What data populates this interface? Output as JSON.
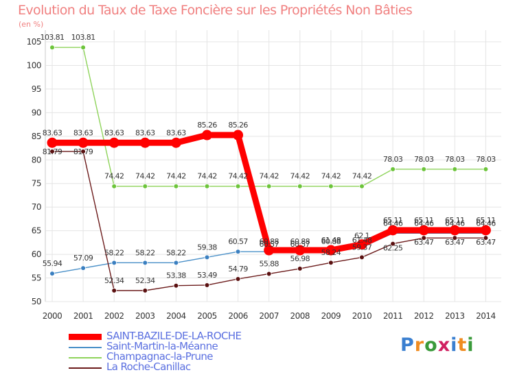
{
  "header": {
    "title": "Evolution du Taux de Taxe Foncière sur les Propriétés Non Bâties",
    "unit": "(en %)"
  },
  "logo": {
    "letters": [
      "P",
      "r",
      "o",
      "x",
      "i",
      "t",
      "i"
    ],
    "colors": [
      "#3a7fd0",
      "#f08c20",
      "#3a9a3a",
      "#d02060",
      "#3a7fd0",
      "#f08c20",
      "#3a9a3a"
    ]
  },
  "chart_data": {
    "type": "line",
    "title": "Evolution du Taux de Taxe Foncière sur les Propriétés Non Bâties",
    "ylabel": "(en %)",
    "xlabel": "",
    "x": [
      2000,
      2001,
      2002,
      2003,
      2004,
      2005,
      2006,
      2007,
      2008,
      2009,
      2010,
      2011,
      2012,
      2013,
      2014
    ],
    "ylim": [
      50,
      105
    ],
    "yticks": [
      50,
      55,
      60,
      65,
      70,
      75,
      80,
      85,
      90,
      95,
      100,
      105
    ],
    "grid": true,
    "legend_position": "bottom-left",
    "series": [
      {
        "name": "SAINT-BAZILE-DE-LA-ROCHE",
        "color": "#ff0000",
        "values": [
          83.63,
          83.63,
          83.63,
          83.63,
          83.63,
          85.26,
          85.26,
          60.88,
          60.88,
          60.88,
          62.1,
          65.11,
          65.11,
          65.11,
          65.11
        ],
        "labels": [
          "83.63",
          "83.63",
          "83.63",
          "83.63",
          "83.63",
          "85.26",
          "85.26",
          "60.88",
          "60.88",
          "60.88",
          "62.1",
          "65.11",
          "65.11",
          "65.11",
          "65.11"
        ]
      },
      {
        "name": "Saint-Martin-la-Méanne",
        "color": "#4a90c8",
        "values": [
          55.94,
          57.09,
          58.22,
          58.22,
          58.22,
          59.38,
          60.57,
          60.57,
          60.57,
          61.48,
          61.48,
          64.46,
          64.46,
          64.46,
          64.46
        ],
        "labels": [
          "55.94",
          "57.09",
          "58.22",
          "58.22",
          "58.22",
          "59.38",
          "60.57",
          "60.57",
          "60.57",
          "61.48",
          "61.48",
          "64.46",
          "64.46",
          "64.46",
          "64.46"
        ]
      },
      {
        "name": "Champagnac-la-Prune",
        "color": "#8ed35a",
        "values": [
          103.81,
          103.81,
          74.42,
          74.42,
          74.42,
          74.42,
          74.42,
          74.42,
          74.42,
          74.42,
          74.42,
          78.03,
          78.03,
          78.03,
          78.03
        ],
        "labels": [
          "103.81",
          "103.81",
          "74.42",
          "74.42",
          "74.42",
          "74.42",
          "74.42",
          "74.42",
          "74.42",
          "74.42",
          "74.42",
          "78.03",
          "78.03",
          "78.03",
          "78.03"
        ]
      },
      {
        "name": "La Roche-Canillac",
        "color": "#6b1a1a",
        "values": [
          81.79,
          81.79,
          52.34,
          52.34,
          53.38,
          53.49,
          54.79,
          55.88,
          56.98,
          58.24,
          59.37,
          62.25,
          63.47,
          63.47,
          63.47
        ],
        "labels": [
          "81.79",
          "81.79",
          "52.34",
          "52.34",
          "53.38",
          "53.49",
          "54.79",
          "55.88",
          "56.98",
          "58.24",
          "59.37",
          "62.25",
          "63.47",
          "63.47",
          "63.47"
        ]
      }
    ]
  }
}
